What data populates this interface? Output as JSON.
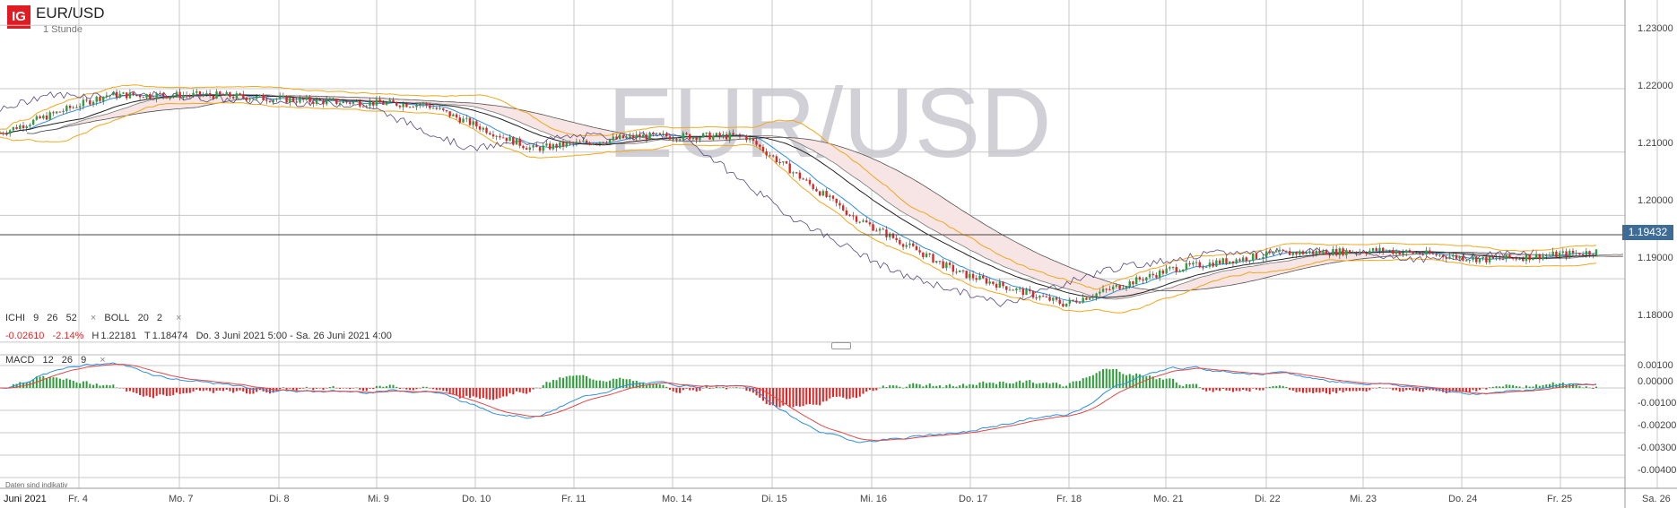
{
  "header": {
    "logo": "IG",
    "symbol": "EUR/USD",
    "interval": "1 Stunde",
    "watermark": "EUR/USD"
  },
  "price_tag": "1.19432",
  "indicators": {
    "ichi": {
      "name": "ICHI",
      "p1": "9",
      "p2": "26",
      "p3": "52"
    },
    "boll": {
      "name": "BOLL",
      "p1": "20",
      "p2": "2"
    },
    "close_glyph": "×"
  },
  "stats": {
    "change": "-0.02610",
    "change_pct": "-2.14%",
    "high_label": "H",
    "high": "1.22181",
    "low_label": "T",
    "low": "1.18474",
    "range": "Do. 3 Juni 2021 5:00 - Sa. 26 Juni 2021 4:00"
  },
  "macd": {
    "name": "MACD",
    "p1": "12",
    "p2": "26",
    "p3": "9"
  },
  "footnote": "Daten sind indikativ",
  "price_axis": [
    "1.23000",
    "1.22000",
    "1.21000",
    "1.20000",
    "1.19000",
    "1.18000"
  ],
  "macd_axis": [
    "0.00100",
    "0.00000",
    "-0.00100",
    "-0.00200",
    "-0.00300",
    "-0.00400"
  ],
  "time_axis": [
    "Juni 2021",
    "Fr. 4",
    "Mo. 7",
    "Di. 8",
    "Mi. 9",
    "Do. 10",
    "Fr. 11",
    "Mo. 14",
    "Di. 15",
    "Mi. 16",
    "Do. 17",
    "Fr. 18",
    "Mo. 21",
    "Di. 22",
    "Mi. 23",
    "Do. 24",
    "Fr. 25",
    "Sa. 26"
  ],
  "colors": {
    "up": "#2e9e3a",
    "down": "#e02424",
    "boll": "#f2a71b",
    "macd_line": "#2f8fe0",
    "signal_line": "#e24848",
    "cloud": "#f7e4e4",
    "accent": "#e11b22"
  },
  "chart_data": {
    "type": "line",
    "x_unit": "date",
    "price_series_daily": [
      {
        "date": "2021-06-04",
        "close": 1.213
      },
      {
        "date": "2021-06-07",
        "close": 1.219
      },
      {
        "date": "2021-06-08",
        "close": 1.219
      },
      {
        "date": "2021-06-09",
        "close": 1.218
      },
      {
        "date": "2021-06-10",
        "close": 1.2175
      },
      {
        "date": "2021-06-11",
        "close": 1.2105
      },
      {
        "date": "2021-06-14",
        "close": 1.2125
      },
      {
        "date": "2021-06-15",
        "close": 1.2125
      },
      {
        "date": "2021-06-16",
        "close": 1.2
      },
      {
        "date": "2021-06-17",
        "close": 1.191
      },
      {
        "date": "2021-06-18",
        "close": 1.186
      },
      {
        "date": "2021-06-21",
        "close": 1.1915
      },
      {
        "date": "2021-06-22",
        "close": 1.194
      },
      {
        "date": "2021-06-23",
        "close": 1.1945
      },
      {
        "date": "2021-06-24",
        "close": 1.193
      },
      {
        "date": "2021-06-25",
        "close": 1.1943
      }
    ],
    "ylim": [
      1.178,
      1.234
    ]
  }
}
